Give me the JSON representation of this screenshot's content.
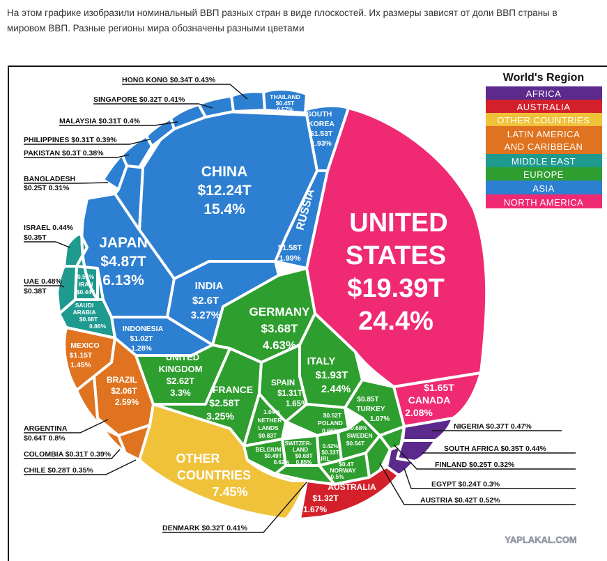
{
  "intro": {
    "line1": "На этом графике изобразили номинальный ВВП разных стран в виде плоскостей. Их размеры зависят от доли ВВП страны в",
    "line2": "мировом ВВП. Разные регионы мира обозначены разными цветами"
  },
  "watermark": "YAPLAKAL.COM",
  "colors": {
    "africa": "#5b2a8c",
    "australia": "#d4202a",
    "other": "#f0c23a",
    "latin": "#e0731f",
    "middle_east": "#1f9a8f",
    "europe": "#2e9e2f",
    "asia": "#2d7fd1",
    "north_america": "#ef2a73"
  },
  "chart_data": {
    "type": "voronoi-treemap",
    "title": "World's GDP share by country",
    "legend": {
      "title": "World's Region",
      "items": [
        "AFRICA",
        "AUSTRALIA",
        "OTHER COUNTRIES",
        "LATIN AMERICA AND CARIBBEAN",
        "MIDDLE EAST",
        "EUROPE",
        "ASIA",
        "NORTH AMERICA"
      ]
    },
    "countries": [
      {
        "name": "UNITED STATES",
        "gdp": "$19.39T",
        "share": "24.4%",
        "region": "north_america"
      },
      {
        "name": "CHINA",
        "gdp": "$12.24T",
        "share": "15.4%",
        "region": "asia"
      },
      {
        "name": "JAPAN",
        "gdp": "$4.87T",
        "share": "6.13%",
        "region": "asia"
      },
      {
        "name": "GERMANY",
        "gdp": "$3.68T",
        "share": "4.63%",
        "region": "europe"
      },
      {
        "name": "INDIA",
        "gdp": "$2.6T",
        "share": "3.27%",
        "region": "asia"
      },
      {
        "name": "UNITED KINGDOM",
        "gdp": "$2.62T",
        "share": "3.3%",
        "region": "europe"
      },
      {
        "name": "FRANCE",
        "gdp": "$2.58T",
        "share": "3.25%",
        "region": "europe"
      },
      {
        "name": "BRAZIL",
        "gdp": "$2.06T",
        "share": "2.59%",
        "region": "latin"
      },
      {
        "name": "ITALY",
        "gdp": "$1.93T",
        "share": "2.44%",
        "region": "europe"
      },
      {
        "name": "CANADA",
        "gdp": "$1.65T",
        "share": "2.08%",
        "region": "north_america"
      },
      {
        "name": "RUSSIA",
        "gdp": "$1.58T",
        "share": "1.99%",
        "region": "asia"
      },
      {
        "name": "SOUTH KOREA",
        "gdp": "$1.53T",
        "share": "1.93%",
        "region": "asia"
      },
      {
        "name": "AUSTRALIA",
        "gdp": "$1.32T",
        "share": "1.67%",
        "region": "australia"
      },
      {
        "name": "SPAIN",
        "gdp": "$1.31T",
        "share": "1.65%",
        "region": "europe"
      },
      {
        "name": "MEXICO",
        "gdp": "$1.15T",
        "share": "1.45%",
        "region": "latin"
      },
      {
        "name": "INDONESIA",
        "gdp": "$1.02T",
        "share": "1.28%",
        "region": "asia"
      },
      {
        "name": "TURKEY",
        "gdp": "$0.85T",
        "share": "1.07%",
        "region": "europe"
      },
      {
        "name": "NETHERLANDS",
        "gdp": "$0.83T",
        "share": "1.04%",
        "region": "europe"
      },
      {
        "name": "SAUDI ARABIA",
        "gdp": "$0.68T",
        "share": "0.86%",
        "region": "middle_east"
      },
      {
        "name": "SWITZERLAND",
        "gdp": "$0.68T",
        "share": "0.85%",
        "region": "europe"
      },
      {
        "name": "ARGENTINA",
        "gdp": "$0.64T",
        "share": "0.8%",
        "region": "latin"
      },
      {
        "name": "SWEDEN",
        "gdp": "$0.54T",
        "share": "0.68%",
        "region": "europe"
      },
      {
        "name": "POLAND",
        "gdp": "$0.52T",
        "share": "0.66%",
        "region": "europe"
      },
      {
        "name": "BELGIUM",
        "gdp": "$0.49T",
        "share": "0.62%",
        "region": "europe"
      },
      {
        "name": "THAILAND",
        "gdp": "$0.45T",
        "share": "0.57%",
        "region": "asia"
      },
      {
        "name": "IRAN",
        "gdp": "$0.44T",
        "share": "0.55%",
        "region": "middle_east"
      },
      {
        "name": "AUSTRIA",
        "gdp": "$0.42T",
        "share": "0.52%",
        "region": "europe"
      },
      {
        "name": "NORWAY",
        "gdp": "$0.4T",
        "share": "0.5%",
        "region": "europe"
      },
      {
        "name": "UAE",
        "gdp": "$0.38T",
        "share": "0.48%",
        "region": "middle_east"
      },
      {
        "name": "NIGERIA",
        "gdp": "$0.37T",
        "share": "0.47%",
        "region": "africa"
      },
      {
        "name": "ISRAEL",
        "gdp": "$0.35T",
        "share": "0.44%",
        "region": "middle_east"
      },
      {
        "name": "SOUTH AFRICA",
        "gdp": "$0.35T",
        "share": "0.44%",
        "region": "africa"
      },
      {
        "name": "HONG KONG",
        "gdp": "$0.34T",
        "share": "0.43%",
        "region": "asia"
      },
      {
        "name": "IRELAND",
        "gdp": "$0.33T",
        "share": "0.42%",
        "region": "europe"
      },
      {
        "name": "DENMARK",
        "gdp": "$0.32T",
        "share": "0.41%",
        "region": "europe"
      },
      {
        "name": "SINGAPORE",
        "gdp": "$0.32T",
        "share": "0.41%",
        "region": "asia"
      },
      {
        "name": "MALAYSIA",
        "gdp": "$0.31T",
        "share": "0.4%",
        "region": "asia"
      },
      {
        "name": "PHILIPPINES",
        "gdp": "$0.31T",
        "share": "0.39%",
        "region": "asia"
      },
      {
        "name": "COLOMBIA",
        "gdp": "$0.31T",
        "share": "0.39%",
        "region": "latin"
      },
      {
        "name": "PAKISTAN",
        "gdp": "$0.3T",
        "share": "0.38%",
        "region": "asia"
      },
      {
        "name": "CHILE",
        "gdp": "$0.28T",
        "share": "0.35%",
        "region": "latin"
      },
      {
        "name": "BANGLADESH",
        "gdp": "$0.25T",
        "share": "0.31%",
        "region": "asia"
      },
      {
        "name": "FINLAND",
        "gdp": "$0.25T",
        "share": "0.32%",
        "region": "europe"
      },
      {
        "name": "EGYPT",
        "gdp": "$0.24T",
        "share": "0.3%",
        "region": "africa"
      },
      {
        "name": "OTHER COUNTRIES",
        "gdp": "",
        "share": "7.45%",
        "region": "other"
      }
    ],
    "cell_text": {
      "us": [
        "UNITED",
        "STATES",
        "$19.39T",
        "24.4%"
      ],
      "china": [
        "CHINA",
        "$12.24T",
        "15.4%"
      ],
      "japan": [
        "JAPAN",
        "$4.87T",
        "6.13%"
      ],
      "india": [
        "INDIA",
        "$2.6T",
        "3.27%"
      ],
      "russia": [
        "RUSSIA",
        "$1.58T",
        "1.99%"
      ],
      "south_korea": [
        "SOUTH",
        "KOREA",
        "$1.53T",
        "1.93%"
      ],
      "thailand": [
        "THAILAND",
        "$0.45T",
        "0.57%"
      ],
      "indonesia": [
        "INDONESIA",
        "$1.02T",
        "1.28%"
      ],
      "iran": [
        "0.55%",
        "IRAN",
        "$0.44T"
      ],
      "saudi": [
        "SAUDI",
        "ARABIA",
        "$0.68T",
        "0.86%"
      ],
      "mexico": [
        "MEXICO",
        "$1.15T",
        "1.45%"
      ],
      "brazil": [
        "BRAZIL",
        "$2.06T",
        "2.59%"
      ],
      "germany": [
        "GERMANY",
        "$3.68T",
        "4.63%"
      ],
      "uk": [
        "UNITED",
        "KINGDOM",
        "$2.62T",
        "3.3%"
      ],
      "france": [
        "FRANCE",
        "$2.58T",
        "3.25%"
      ],
      "italy": [
        "ITALY",
        "$1.93T",
        "2.44%"
      ],
      "spain": [
        "SPAIN",
        "$1.31T",
        "1.65%"
      ],
      "netherlands": [
        "1.04%",
        "NETHER",
        "LANDS",
        "$0.83T"
      ],
      "belgium": [
        "BELGIUM",
        "$0.49T",
        "0.62%"
      ],
      "switzerland": [
        "SWITZER-",
        "LAND",
        "$0.68T",
        "0.85%"
      ],
      "poland": [
        "$0.52T",
        "POLAND",
        "0.66%"
      ],
      "irl": [
        "0.42%",
        "$0.33T",
        "IRL"
      ],
      "sweden": [
        "0.68%",
        "SWEDEN",
        "$0.54T"
      ],
      "norway": [
        "$0.4T",
        "NORWAY",
        "0.5%"
      ],
      "turkey": [
        "$0.85T",
        "TURKEY",
        "1.07%"
      ],
      "canada": [
        "$1.65T",
        "CANADA",
        "2.08%"
      ],
      "other": [
        "OTHER",
        "COUNTRIES",
        "7.45%"
      ],
      "australia": [
        "AUSTRALIA",
        "$1.32T",
        "1.67%"
      ]
    },
    "callouts": {
      "hong_kong": "HONG KONG $0.34T 0.43%",
      "singapore": "SINGAPORE $0.32T 0.41%",
      "malaysia": "MALAYSIA $0.31T 0.4%",
      "philippines": "PHILIPPINES $0.31T 0.39%",
      "pakistan": "PAKISTAN $0.3T 0.38%",
      "bangladesh_1": "BANGLADESH",
      "bangladesh_2": "$0.25T 0.31%",
      "israel_1": "ISRAEL 0.44%",
      "israel_2": "$0.35T",
      "uae_1": "UAE 0.48%",
      "uae_2": "$0.38T",
      "argentina_1": "ARGENTINA",
      "argentina_2": "$0.64T 0.8%",
      "colombia": "COLOMBIA $0.31T 0.39%",
      "chile": "CHILE $0.28T 0.35%",
      "denmark": "DENMARK $0.32T 0.41%",
      "nigeria": "NIGERIA $0.37T 0.47%",
      "south_africa": "SOUTH AFRICA $0.35T 0.44%",
      "finland": "FINLAND $0.25T 0.32%",
      "egypt": "EGYPT $0.24T 0.3%",
      "austria": "AUSTRIA $0.42T 0.52%"
    }
  }
}
